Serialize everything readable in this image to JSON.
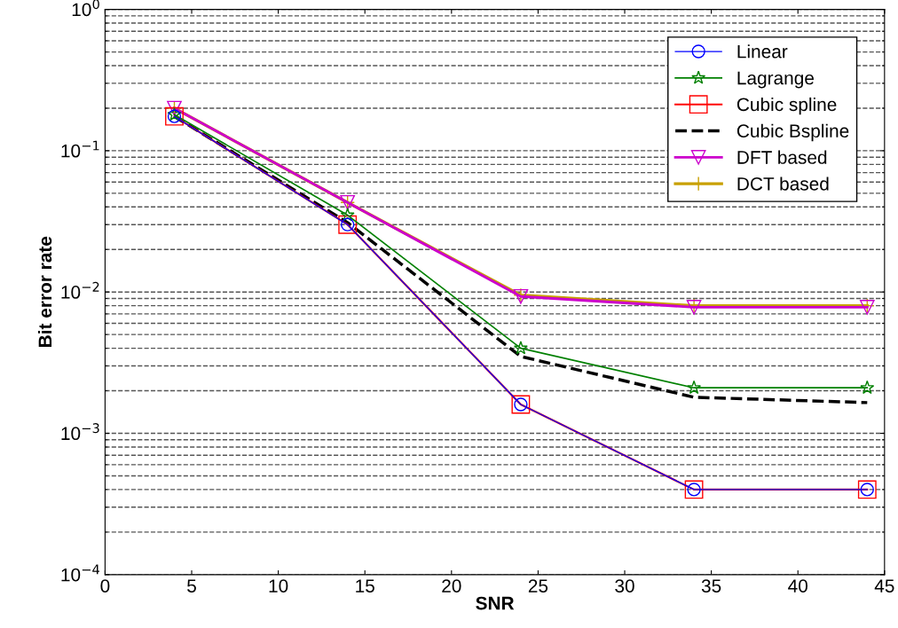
{
  "chart_data": {
    "type": "line",
    "xlabel": "SNR",
    "ylabel": "Bit error rate",
    "x": [
      4,
      14,
      24,
      34,
      44
    ],
    "series": [
      {
        "name": "Linear",
        "color": "#0000ff",
        "marker": "circle",
        "line_style": "solid",
        "values": [
          0.175,
          0.03,
          0.0016,
          0.0004,
          0.0004
        ]
      },
      {
        "name": "Lagrange",
        "color": "#008000",
        "marker": "star",
        "line_style": "solid",
        "values": [
          0.18,
          0.035,
          0.004,
          0.0021,
          0.0021
        ]
      },
      {
        "name": "Cubic spline",
        "color": "#ff0000",
        "marker": "square",
        "line_style": "solid",
        "values": [
          0.175,
          0.03,
          0.0016,
          0.0004,
          0.0004
        ]
      },
      {
        "name": "Cubic Bspline",
        "color": "#000000",
        "marker": "none",
        "line_style": "dashed",
        "values": [
          0.175,
          0.031,
          0.0035,
          0.0018,
          0.00165
        ]
      },
      {
        "name": "DFT based",
        "color": "#cc00cc",
        "marker": "triangle",
        "line_style": "solid",
        "values": [
          0.2,
          0.043,
          0.0093,
          0.0078,
          0.0078
        ]
      },
      {
        "name": "DCT based",
        "color": "#c8a000",
        "marker": "cross",
        "line_style": "solid",
        "values": [
          0.2,
          0.043,
          0.0095,
          0.008,
          0.008
        ]
      }
    ],
    "log": "y",
    "xlim": [
      0,
      45
    ],
    "xticks": [
      0,
      5,
      10,
      15,
      20,
      25,
      30,
      35,
      40,
      45
    ],
    "ylim": [
      0.0001,
      1
    ],
    "yticks": [
      {
        "value": 0.0001,
        "label": "10$^{−4}$"
      },
      {
        "value": 0.001,
        "label": "10$^{−3}$"
      },
      {
        "value": 0.01,
        "label": "10$^{−2}$"
      },
      {
        "value": 0.1,
        "label": "10$^{−1}$"
      },
      {
        "value": 1,
        "label": "10$^{0}$"
      }
    ],
    "grid": "y",
    "legend": "top right"
  }
}
